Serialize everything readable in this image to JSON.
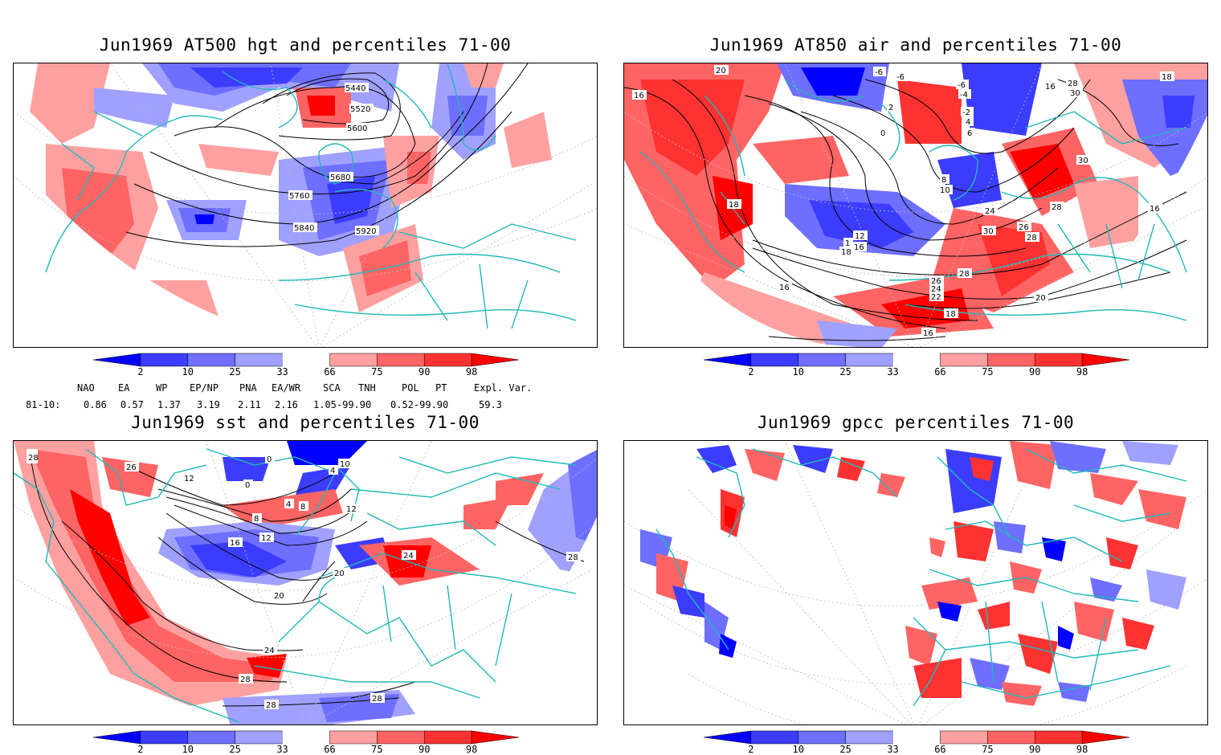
{
  "panels": [
    {
      "title": "Jun1969 AT500 hgt and percentiles 71-00",
      "contour_labels": [
        "5440",
        "5520",
        "5600",
        "5680",
        "5760",
        "5840",
        "5920"
      ]
    },
    {
      "title": "Jun1969 AT850 air and percentiles 71-00",
      "contour_labels": [
        "20",
        "16",
        "-6",
        "-6",
        "-6",
        "-4",
        "-2",
        "2",
        "4",
        "6",
        "0",
        "16",
        "28",
        "30",
        "18",
        "30",
        "18",
        "8",
        "10",
        "24",
        "26",
        "28",
        "12",
        "1",
        "16",
        "18",
        "16",
        "30",
        "28",
        "28",
        "26",
        "24",
        "22",
        "18",
        "16",
        "20",
        "16"
      ]
    },
    {
      "title": "Jun1969 sst and percentiles 71-00",
      "contour_labels": [
        "28",
        "26",
        "12",
        "0",
        "0",
        "4",
        "10",
        "4",
        "8",
        "8",
        "12",
        "12",
        "16",
        "20",
        "20",
        "24",
        "28",
        "28",
        "24",
        "28",
        "28"
      ]
    },
    {
      "title": "Jun1969 gpcc percentiles 71-00",
      "contour_labels": []
    }
  ],
  "colorbar": {
    "ticks": [
      "2",
      "10",
      "25",
      "33",
      "66",
      "75",
      "90",
      "98"
    ],
    "colors": [
      "#0000ff",
      "#3c3cff",
      "#6e6eff",
      "#a0a0ff",
      "#ffffff",
      "#ffa0a0",
      "#ff6464",
      "#ff3232",
      "#ff0000"
    ]
  },
  "indices": {
    "header": [
      "NAO",
      "EA",
      "WP",
      "EP/NP",
      "PNA",
      "EA/WR",
      "SCA",
      "TNH",
      "POL",
      "PT",
      "Expl. Var."
    ],
    "row_label": "81-10:",
    "values": [
      "0.86",
      "0.57",
      "1.37",
      "3.19",
      "2.11",
      "2.16",
      "1.05-99.90",
      "0.52-99.90",
      "59.3"
    ]
  }
}
